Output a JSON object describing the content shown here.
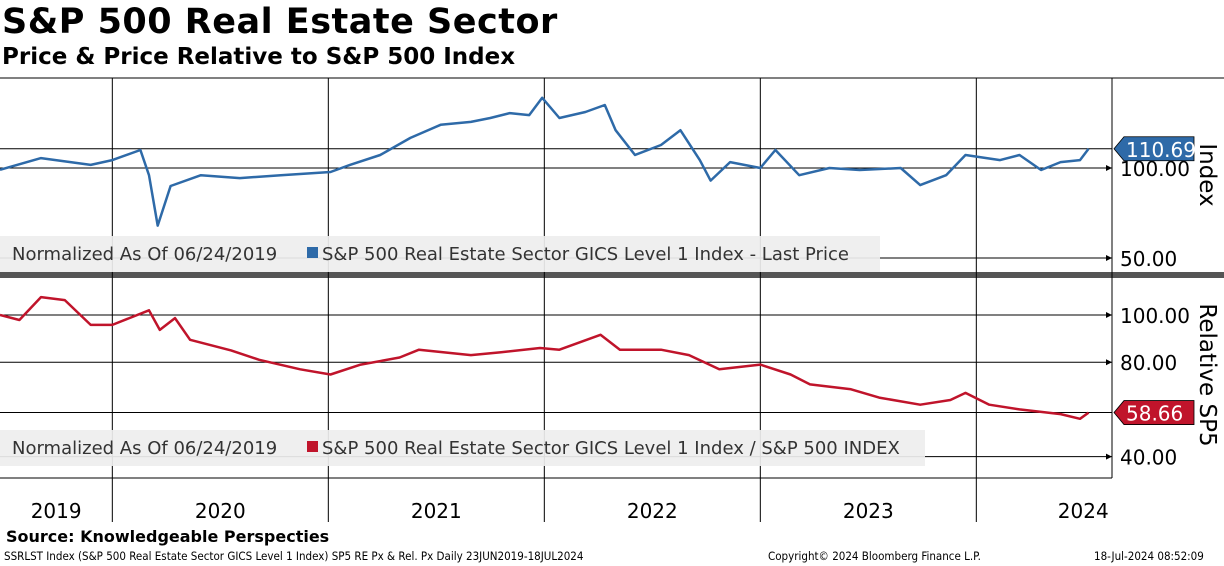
{
  "title": "S&P 500 Real Estate Sector",
  "subtitle": "Price & Price Relative to S&P 500 Index",
  "source": "Source: Knowledgeable Perspecties",
  "footer": {
    "left": "SSRLST Index (S&P 500 Real Estate Sector GICS Level 1 Index) SP5 RE Px & Rel. Px  Daily 23JUN2019-18JUL2024",
    "center": "Copyright© 2024 Bloomberg Finance L.P.",
    "right": "18-Jul-2024 08:52:09"
  },
  "colors": {
    "price": "#2e6aa8",
    "relative": "#c0142b"
  },
  "chart_data": [
    {
      "type": "line",
      "panel": "top",
      "ylabel": "Index",
      "ylim": [
        43,
        150
      ],
      "yticks": [
        "100.00",
        "50.00"
      ],
      "ytick_values": [
        100,
        50
      ],
      "legend_prefix": "Normalized As Of 06/24/2019",
      "legend": "S&P 500 Real Estate Sector GICS Level 1 Index - Last Price",
      "last_value": 110.69,
      "last_label": "110.69",
      "series": [
        [
          2019.48,
          99
        ],
        [
          2019.67,
          105.5
        ],
        [
          2019.9,
          101.7
        ],
        [
          2020.0,
          104.4
        ],
        [
          2020.13,
          110
        ],
        [
          2020.17,
          96
        ],
        [
          2020.21,
          68
        ],
        [
          2020.27,
          90
        ],
        [
          2020.41,
          96
        ],
        [
          2020.59,
          94.4
        ],
        [
          2020.78,
          96
        ],
        [
          2021.01,
          97.8
        ],
        [
          2021.1,
          101.7
        ],
        [
          2021.24,
          107.2
        ],
        [
          2021.38,
          116.7
        ],
        [
          2021.52,
          124
        ],
        [
          2021.66,
          125.6
        ],
        [
          2021.75,
          127.8
        ],
        [
          2021.84,
          130.5
        ],
        [
          2021.93,
          129.4
        ],
        [
          2021.99,
          139
        ],
        [
          2022.07,
          127.8
        ],
        [
          2022.19,
          131.1
        ],
        [
          2022.28,
          135
        ],
        [
          2022.33,
          121
        ],
        [
          2022.42,
          107.2
        ],
        [
          2022.54,
          112.8
        ],
        [
          2022.63,
          121
        ],
        [
          2022.72,
          104.4
        ],
        [
          2022.77,
          93
        ],
        [
          2022.86,
          103.3
        ],
        [
          2023.0,
          100
        ],
        [
          2023.07,
          110
        ],
        [
          2023.18,
          96
        ],
        [
          2023.32,
          100
        ],
        [
          2023.46,
          98.9
        ],
        [
          2023.65,
          100
        ],
        [
          2023.74,
          90.5
        ],
        [
          2023.86,
          96
        ],
        [
          2023.95,
          107.2
        ],
        [
          2024.11,
          104.4
        ],
        [
          2024.2,
          107.2
        ],
        [
          2024.3,
          98.9
        ],
        [
          2024.39,
          103.3
        ],
        [
          2024.48,
          104.4
        ],
        [
          2024.52,
          110.69
        ]
      ]
    },
    {
      "type": "line",
      "panel": "bottom",
      "ylabel": "Relative SP5",
      "ylim": [
        34,
        113
      ],
      "yticks": [
        "100.00",
        "80.00",
        "40.00"
      ],
      "ytick_values": [
        100,
        80,
        40
      ],
      "legend_prefix": "Normalized As Of 06/24/2019",
      "legend": "S&P 500 Real Estate Sector GICS Level 1 Index / S&P 500 INDEX",
      "last_value": 58.66,
      "last_label": "58.66",
      "series": [
        [
          2019.48,
          100
        ],
        [
          2019.57,
          97.9
        ],
        [
          2019.67,
          107.6
        ],
        [
          2019.78,
          106.3
        ],
        [
          2019.9,
          95.8
        ],
        [
          2020.0,
          95.8
        ],
        [
          2020.17,
          102
        ],
        [
          2020.22,
          93.7
        ],
        [
          2020.29,
          98.7
        ],
        [
          2020.36,
          89.5
        ],
        [
          2020.55,
          85
        ],
        [
          2020.68,
          81
        ],
        [
          2020.87,
          77
        ],
        [
          2021.01,
          74.8
        ],
        [
          2021.15,
          79
        ],
        [
          2021.33,
          82
        ],
        [
          2021.42,
          85.3
        ],
        [
          2021.66,
          83
        ],
        [
          2021.8,
          84.2
        ],
        [
          2021.98,
          86
        ],
        [
          2022.07,
          85.3
        ],
        [
          2022.26,
          91.6
        ],
        [
          2022.35,
          85.3
        ],
        [
          2022.54,
          85.3
        ],
        [
          2022.67,
          83
        ],
        [
          2022.81,
          77
        ],
        [
          2023.0,
          79
        ],
        [
          2023.14,
          74.8
        ],
        [
          2023.23,
          70.6
        ],
        [
          2023.42,
          68.5
        ],
        [
          2023.55,
          65
        ],
        [
          2023.74,
          62
        ],
        [
          2023.88,
          64
        ],
        [
          2023.95,
          67
        ],
        [
          2024.06,
          62
        ],
        [
          2024.2,
          60
        ],
        [
          2024.39,
          58
        ],
        [
          2024.48,
          56
        ],
        [
          2024.52,
          58.66
        ]
      ]
    }
  ],
  "xaxis": {
    "years": [
      "2019",
      "2020",
      "2021",
      "2022",
      "2023",
      "2024"
    ],
    "boundaries": [
      2020,
      2021,
      2022,
      2023,
      2024
    ],
    "start": 2019.48,
    "end": 2024.99
  }
}
